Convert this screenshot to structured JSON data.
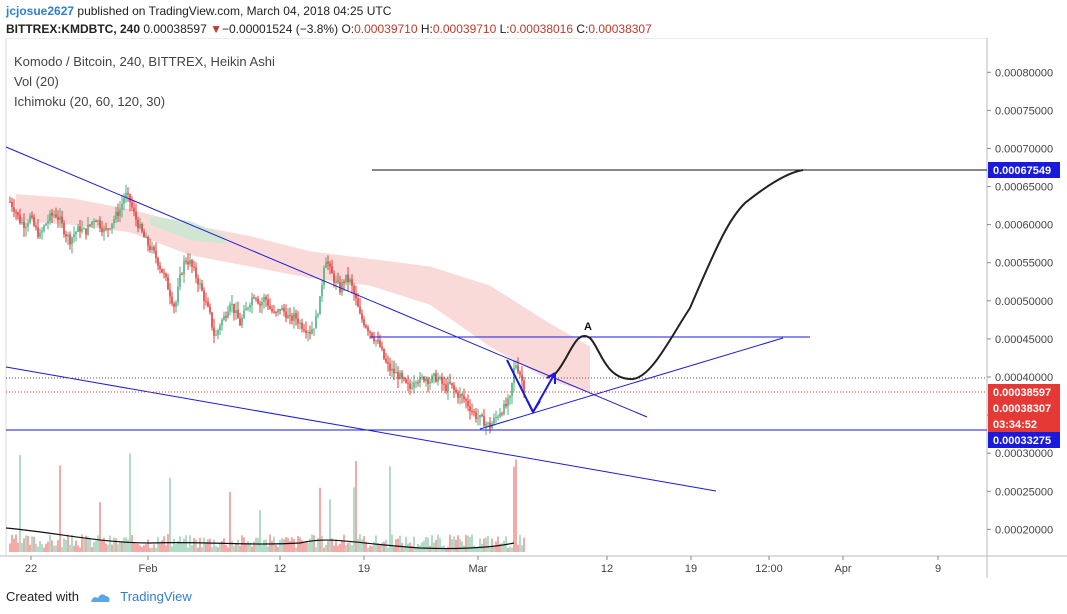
{
  "header": {
    "user": "jcjosue2627",
    "published_text": "published on TradingView.com, March 04, 2018 04:25 UTC",
    "symbol": "BITTREX:KMDBTC, 240",
    "last_price": "0.00038597",
    "change": "−0.00001524 (−3.8%)",
    "o_label": "O:",
    "o_value": "0.00039710",
    "h_label": "H:",
    "h_value": "0.00039710",
    "l_label": "L:",
    "l_value": "0.00038016",
    "c_label": "C:",
    "c_value": "0.00038307"
  },
  "legend": {
    "title": "Komodo / Bitcoin, 240, BITTREX, Heikin Ashi",
    "vol": "Vol (20)",
    "ichimoku": "Ichimoku (20, 60, 120, 30)"
  },
  "footer": {
    "created_with": "Created with",
    "brand": "TradingView"
  },
  "colors": {
    "up": "#4caf7d",
    "down": "#e53935",
    "trendline": "#1a1adc",
    "cloud_red": "#f8c9c9",
    "cloud_green": "#c6e7cf",
    "projection": "#222222",
    "price_tag_blue": "#1a1adc",
    "price_tag_red": "#e53935"
  },
  "chart_data": {
    "type": "candlestick",
    "ylim": [
      0.000165,
      0.000845
    ],
    "y_ticks": [
      "0.00080000",
      "0.00075000",
      "0.00070000",
      "0.00065000",
      "0.00060000",
      "0.00055000",
      "0.00050000",
      "0.00045000",
      "0.00040000",
      "0.00035000",
      "0.00030000",
      "0.00025000",
      "0.00020000"
    ],
    "x_labels": [
      "22",
      "Feb",
      "12",
      "19",
      "Mar",
      "12",
      "19",
      "12:00",
      "Apr",
      "9"
    ],
    "price_tags": [
      {
        "value": "0.00067549",
        "color": "#1a1adc"
      },
      {
        "value": "0.00038597",
        "color": "#e53935"
      },
      {
        "value": "0.00038307",
        "color": "#e53935"
      },
      {
        "value": "03:34:52",
        "color": "#e53935"
      },
      {
        "value": "0.00033275",
        "color": "#1a1adc"
      }
    ],
    "annotation": "A",
    "series": [
      {
        "name": "Heikin Ashi close (approx.)",
        "points": [
          [
            0,
            0.00063
          ],
          [
            5,
            0.00062
          ],
          [
            10,
            0.000605
          ],
          [
            15,
            0.0006
          ],
          [
            20,
            0.00061
          ],
          [
            25,
            0.000595
          ],
          [
            30,
            0.000585
          ],
          [
            35,
            0.0006
          ],
          [
            40,
            0.00061
          ],
          [
            45,
            0.000615
          ],
          [
            50,
            0.000605
          ],
          [
            55,
            0.00059
          ],
          [
            60,
            0.00058
          ],
          [
            65,
            0.00059
          ],
          [
            70,
            0.000595
          ],
          [
            75,
            0.00059
          ],
          [
            80,
            0.0006
          ],
          [
            85,
            0.00061
          ],
          [
            90,
            0.0006
          ],
          [
            95,
            0.00059
          ],
          [
            100,
            0.0006
          ],
          [
            110,
            0.00062
          ],
          [
            115,
            0.00064
          ],
          [
            120,
            0.00063
          ],
          [
            125,
            0.00061
          ],
          [
            130,
            0.000595
          ],
          [
            135,
            0.00058
          ],
          [
            140,
            0.00057
          ],
          [
            145,
            0.00056
          ],
          [
            150,
            0.000545
          ],
          [
            155,
            0.00053
          ],
          [
            160,
            0.00051
          ],
          [
            165,
            0.00049
          ],
          [
            170,
            0.00053
          ],
          [
            175,
            0.000555
          ],
          [
            180,
            0.00055
          ],
          [
            185,
            0.000535
          ],
          [
            190,
            0.00052
          ],
          [
            195,
            0.0005
          ],
          [
            200,
            0.00048
          ],
          [
            205,
            0.00045
          ],
          [
            210,
            0.00047
          ],
          [
            215,
            0.00048
          ],
          [
            220,
            0.0005
          ],
          [
            225,
            0.000485
          ],
          [
            230,
            0.00047
          ],
          [
            235,
            0.000485
          ],
          [
            240,
            0.0005
          ],
          [
            245,
            0.00051
          ],
          [
            250,
            0.000495
          ],
          [
            255,
            0.000505
          ],
          [
            260,
            0.00049
          ],
          [
            265,
            0.00048
          ],
          [
            270,
            0.00049
          ],
          [
            275,
            0.000485
          ],
          [
            280,
            0.000475
          ],
          [
            285,
            0.00048
          ],
          [
            290,
            0.00047
          ],
          [
            295,
            0.000465
          ],
          [
            300,
            0.00046
          ],
          [
            305,
            0.00047
          ],
          [
            310,
            0.0005
          ],
          [
            315,
            0.00056
          ],
          [
            320,
            0.00054
          ],
          [
            325,
            0.000525
          ],
          [
            330,
            0.000515
          ],
          [
            335,
            0.00053
          ],
          [
            340,
            0.000525
          ],
          [
            345,
            0.000505
          ],
          [
            350,
            0.00048
          ],
          [
            355,
            0.00047
          ],
          [
            360,
            0.00046
          ],
          [
            365,
            0.00045
          ],
          [
            370,
            0.00044
          ],
          [
            375,
            0.00042
          ],
          [
            380,
            0.00041
          ],
          [
            385,
            0.000405
          ],
          [
            390,
            0.0004
          ],
          [
            395,
            0.00039
          ],
          [
            400,
            0.000385
          ],
          [
            405,
            0.0004
          ],
          [
            410,
            0.000395
          ],
          [
            415,
            0.0004
          ],
          [
            420,
            0.000395
          ],
          [
            425,
            0.0004
          ],
          [
            430,
            0.000395
          ],
          [
            435,
            0.000385
          ],
          [
            440,
            0.00039
          ],
          [
            445,
            0.00038
          ],
          [
            450,
            0.000375
          ],
          [
            455,
            0.00037
          ],
          [
            460,
            0.00036
          ],
          [
            465,
            0.00035
          ],
          [
            470,
            0.000345
          ],
          [
            475,
            0.00034
          ],
          [
            480,
            0.000335
          ],
          [
            485,
            0.000345
          ],
          [
            490,
            0.000355
          ],
          [
            495,
            0.00036
          ],
          [
            500,
            0.00037
          ],
          [
            505,
            0.00042
          ],
          [
            510,
            0.000405
          ],
          [
            514,
            0.000385
          ]
        ]
      }
    ],
    "volume": {
      "ylim": [
        0,
        1
      ],
      "peaks_x": [
        10,
        50,
        90,
        120,
        160,
        220,
        250,
        310,
        320,
        345,
        380,
        505
      ]
    }
  }
}
